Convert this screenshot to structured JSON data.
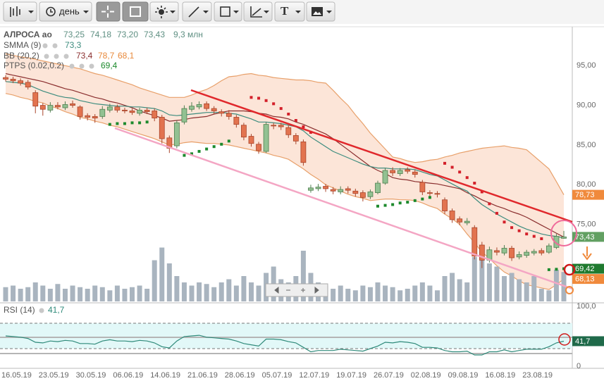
{
  "toolbar": {
    "period": "день",
    "text_tool": "T"
  },
  "chart_data": [
    {
      "type": "candlestick",
      "title": "АЛРОСА ао",
      "header_values": [
        "73,25",
        "74,18",
        "73,20",
        "73,43",
        "9,3 млн"
      ],
      "categories": [
        "16.05.19",
        null,
        null,
        null,
        null,
        "23.05.19",
        null,
        null,
        null,
        null,
        "30.05.19",
        null,
        null,
        null,
        null,
        "06.06.19",
        null,
        null,
        null,
        null,
        "14.06.19",
        null,
        null,
        null,
        null,
        "21.06.19",
        null,
        null,
        null,
        null,
        "28.06.19",
        null,
        null,
        null,
        null,
        "05.07.19",
        null,
        null,
        null,
        null,
        "12.07.19",
        null,
        null,
        null,
        null,
        "19.07.19",
        null,
        null,
        null,
        null,
        "26.07.19",
        null,
        null,
        null,
        null,
        "02.08.19",
        null,
        null,
        null,
        null,
        "09.08.19",
        null,
        null,
        null,
        null,
        "16.08.19",
        null,
        null,
        null,
        null,
        "23.08.19",
        null,
        null,
        null,
        null,
        null
      ],
      "open": [
        93.5,
        93.3,
        93.1,
        92.9,
        91.6,
        90.0,
        89.4,
        90.0,
        89.7,
        90.2,
        89.8,
        88.7,
        88.6,
        88.6,
        89.4,
        89.8,
        89.4,
        89.3,
        89.0,
        89.4,
        89.3,
        88.5,
        85.9,
        84.9,
        87.9,
        89.5,
        89.8,
        90.2,
        89.6,
        89.2,
        89.0,
        88.5,
        87.5,
        86.1,
        85.1,
        84.2,
        87.5,
        87.5,
        87.2,
        86.2,
        85.4,
        79.3,
        79.5,
        79.8,
        79.4,
        79.1,
        79.5,
        79.2,
        79.0,
        78.5,
        79.0,
        80.2,
        81.8,
        81.4,
        81.9,
        81.6,
        80.3,
        79.0,
        78.9,
        78.1,
        76.7,
        75.7,
        75.2,
        74.6,
        72.4,
        70.5,
        71.7,
        71.4,
        72.0,
        70.9,
        71.1,
        71.4,
        71.7,
        71.5,
        72.1,
        73.25
      ],
      "high": [
        93.8,
        93.6,
        93.4,
        93.2,
        91.9,
        90.3,
        90.4,
        90.4,
        90.5,
        90.6,
        90.0,
        89.0,
        88.9,
        89.9,
        90.2,
        90.1,
        89.7,
        89.6,
        89.7,
        89.7,
        89.6,
        88.8,
        86.2,
        88.1,
        90.0,
        90.4,
        90.5,
        90.5,
        89.9,
        89.5,
        89.4,
        88.8,
        87.8,
        86.4,
        85.4,
        87.9,
        87.8,
        87.8,
        87.5,
        86.5,
        85.7,
        80.0,
        80.1,
        80.1,
        79.7,
        79.8,
        79.8,
        79.5,
        79.3,
        79.4,
        80.5,
        82.1,
        82.2,
        82.1,
        82.2,
        81.9,
        80.6,
        79.3,
        79.2,
        78.4,
        77.0,
        76.0,
        75.8,
        74.9,
        72.8,
        72.2,
        72.1,
        72.4,
        72.3,
        71.6,
        71.8,
        71.9,
        72.0,
        72.6,
        73.8,
        74.18
      ],
      "low": [
        93.0,
        92.8,
        92.5,
        92.0,
        89.0,
        88.7,
        89.1,
        89.5,
        89.4,
        89.7,
        88.2,
        88.1,
        87.8,
        88.3,
        89.1,
        89.1,
        89.0,
        88.8,
        88.7,
        88.9,
        88.0,
        85.2,
        84.0,
        84.6,
        87.6,
        89.2,
        89.5,
        89.3,
        88.9,
        88.6,
        88.2,
        87.2,
        85.6,
        84.8,
        83.9,
        84.0,
        87.0,
        86.9,
        85.9,
        85.1,
        82.4,
        79.0,
        79.2,
        79.1,
        78.8,
        78.8,
        78.9,
        78.5,
        77.9,
        78.2,
        78.8,
        80.0,
        81.1,
        81.1,
        81.4,
        80.9,
        78.7,
        78.5,
        78.4,
        76.3,
        75.2,
        74.9,
        74.9,
        70.6,
        69.5,
        70.2,
        71.1,
        71.1,
        70.4,
        70.6,
        70.8,
        71.1,
        71.1,
        71.3,
        71.9,
        73.2
      ],
      "close": [
        93.3,
        93.1,
        92.8,
        92.3,
        89.9,
        89.5,
        90.0,
        89.8,
        90.1,
        90.0,
        88.6,
        88.5,
        88.4,
        89.5,
        89.8,
        89.4,
        89.3,
        89.1,
        89.4,
        89.2,
        88.4,
        85.8,
        84.6,
        87.8,
        89.6,
        89.9,
        90.1,
        89.6,
        89.3,
        89.0,
        88.6,
        87.6,
        86.0,
        85.2,
        84.3,
        87.6,
        87.4,
        87.3,
        86.3,
        85.5,
        82.8,
        79.6,
        79.7,
        79.5,
        79.2,
        79.4,
        79.3,
        78.9,
        78.4,
        79.1,
        80.2,
        81.8,
        81.5,
        81.8,
        81.7,
        81.3,
        79.1,
        78.9,
        78.8,
        76.7,
        75.6,
        75.3,
        75.4,
        71.0,
        70.5,
        71.8,
        71.5,
        72.0,
        70.8,
        71.2,
        71.5,
        71.6,
        71.4,
        72.3,
        73.5,
        73.43
      ],
      "last_label": "73,43",
      "last_color": "#62a062",
      "up_color": "#92c192",
      "up_border": "#4f7f4f",
      "down_color": "#e2734f",
      "down_border": "#a9452b",
      "ylim": [
        65.3,
        99.9
      ],
      "yticks": [
        {
          "value": 95,
          "label": "95,00"
        },
        {
          "value": 90,
          "label": "90,00"
        },
        {
          "value": 85,
          "label": "85,00"
        },
        {
          "value": 80,
          "label": "80,00"
        },
        {
          "value": 75,
          "label": "75,00"
        }
      ],
      "grid": true,
      "smma": {
        "name": "SMMA (9)",
        "color": "#3c8c7e",
        "legend_value": "73,3",
        "values": [
          93.0,
          92.9,
          92.8,
          92.6,
          92.2,
          91.8,
          91.5,
          91.2,
          91.0,
          90.9,
          90.6,
          90.4,
          90.2,
          90.1,
          90.0,
          89.9,
          89.9,
          89.8,
          89.8,
          89.7,
          89.6,
          89.3,
          88.8,
          88.7,
          88.8,
          88.9,
          89.0,
          89.1,
          89.1,
          89.1,
          89.0,
          88.9,
          88.6,
          88.3,
          87.9,
          87.9,
          87.8,
          87.7,
          87.5,
          87.3,
          86.8,
          86.0,
          85.4,
          84.8,
          84.2,
          83.8,
          83.4,
          83.0,
          82.6,
          82.3,
          82.1,
          82.1,
          82.0,
          82.0,
          82.0,
          81.9,
          81.6,
          81.3,
          81.1,
          80.6,
          80.1,
          79.6,
          79.2,
          78.3,
          77.5,
          76.9,
          76.3,
          75.8,
          75.3,
          74.8,
          74.4,
          74.1,
          73.8,
          73.6,
          73.5,
          73.3
        ]
      },
      "bb": {
        "name": "BB (20,2)",
        "color": "#e8a06a",
        "fill": "#fce5d8",
        "middle_color": "#8a2e2e",
        "legend_values": {
          "middle": "73,4",
          "upper": "78,7",
          "lower": "68,1"
        },
        "last_labels": {
          "upper": "78,73",
          "lower": "68,13"
        },
        "label_color": "#f08a3c",
        "upper": [
          96.5,
          96.3,
          96.1,
          96.0,
          95.8,
          95.6,
          95.4,
          95.2,
          95.0,
          94.8,
          94.6,
          94.3,
          94.0,
          93.8,
          93.5,
          93.2,
          92.9,
          92.6,
          92.2,
          91.9,
          91.6,
          91.3,
          91.0,
          91.0,
          91.0,
          91.3,
          91.7,
          92.0,
          92.5,
          93.1,
          93.6,
          93.7,
          93.9,
          94.0,
          93.8,
          93.7,
          93.5,
          93.4,
          93.3,
          93.2,
          93.2,
          93.1,
          92.9,
          92.8,
          91.9,
          90.9,
          90.0,
          88.8,
          87.7,
          86.5,
          85.5,
          84.5,
          83.5,
          83.3,
          83.0,
          82.8,
          82.9,
          83.1,
          83.2,
          83.5,
          83.7,
          84.0,
          84.2,
          84.4,
          84.6,
          84.7,
          84.8,
          84.9,
          84.7,
          84.6,
          84.4,
          83.6,
          82.8,
          82.0,
          80.4,
          78.73
        ],
        "middle": [
          94.0,
          93.8,
          93.6,
          93.4,
          93.2,
          93.0,
          92.7,
          92.4,
          92.1,
          91.9,
          91.6,
          91.3,
          91.0,
          90.8,
          90.5,
          90.3,
          90.0,
          89.7,
          89.3,
          89.0,
          88.7,
          88.4,
          88.0,
          88.1,
          88.2,
          88.4,
          88.5,
          88.6,
          88.9,
          89.1,
          89.3,
          89.3,
          89.3,
          89.2,
          89.0,
          88.9,
          88.6,
          88.5,
          88.3,
          87.9,
          87.6,
          87.2,
          86.8,
          86.4,
          85.8,
          85.1,
          84.4,
          83.7,
          83.0,
          82.3,
          81.8,
          81.4,
          80.9,
          80.7,
          80.6,
          80.4,
          80.3,
          80.2,
          80.1,
          79.9,
          79.7,
          79.5,
          79.0,
          78.6,
          78.1,
          77.7,
          77.3,
          77.0,
          76.6,
          76.3,
          75.9,
          75.4,
          74.9,
          74.4,
          73.9,
          73.4
        ],
        "lower": [
          91.5,
          91.3,
          91.0,
          90.8,
          90.5,
          90.3,
          89.9,
          89.6,
          89.2,
          88.9,
          88.5,
          88.3,
          88.0,
          87.8,
          87.5,
          87.3,
          87.0,
          86.7,
          86.4,
          86.1,
          85.8,
          85.4,
          85.0,
          85.1,
          85.3,
          85.4,
          85.3,
          85.2,
          85.2,
          85.1,
          85.0,
          84.8,
          84.6,
          84.4,
          84.2,
          84.0,
          83.7,
          83.5,
          83.2,
          82.6,
          82.0,
          81.3,
          80.7,
          80.0,
          79.6,
          79.2,
          78.8,
          78.5,
          78.3,
          78.0,
          78.1,
          78.2,
          78.2,
          78.1,
          78.1,
          78.0,
          77.7,
          77.3,
          77.0,
          76.3,
          75.7,
          75.0,
          73.8,
          72.7,
          71.5,
          70.7,
          69.8,
          69.0,
          68.5,
          67.9,
          67.4,
          67.2,
          67.0,
          66.8,
          67.4,
          68.13
        ]
      },
      "ptps": {
        "name": "PTPS (0.02,0.2)",
        "legend_value": "69,4",
        "last_label": "69,42",
        "label_color": "#1f7a2f",
        "above_color": "#d3202a",
        "below_color": "#1d8a2d",
        "values": [
          null,
          null,
          null,
          null,
          null,
          null,
          null,
          null,
          null,
          null,
          null,
          null,
          null,
          null,
          87.6,
          87.7,
          87.7,
          87.8,
          87.8,
          87.9,
          null,
          null,
          null,
          null,
          83.7,
          83.9,
          84.2,
          84.5,
          84.8,
          85.1,
          85.5,
          null,
          null,
          91.0,
          90.9,
          90.6,
          90.2,
          89.6,
          88.9,
          88.1,
          87.3,
          86.6,
          null,
          null,
          null,
          null,
          null,
          null,
          null,
          null,
          77.3,
          77.4,
          77.5,
          77.7,
          77.8,
          78.0,
          78.2,
          78.4,
          null,
          82.7,
          82.2,
          81.6,
          80.9,
          80.2,
          79.1,
          77.6,
          76.4,
          75.3,
          74.6,
          74.2,
          73.8,
          73.5,
          73.2,
          69.3,
          69.35,
          69.42
        ]
      },
      "volume": {
        "color": "#a9b4bf",
        "values": [
          4.5,
          5,
          4,
          4.5,
          6,
          5,
          4,
          5.5,
          4,
          5,
          4.5,
          4,
          5,
          4.5,
          3.5,
          5,
          4,
          4.5,
          5,
          4,
          13,
          17,
          12,
          8,
          6,
          5,
          6,
          5.5,
          4.5,
          6,
          7,
          5,
          8,
          6,
          5,
          9,
          11,
          7,
          6,
          8,
          16,
          9,
          6,
          5,
          4,
          5,
          4,
          3.5,
          5,
          4.5,
          6,
          5,
          4.5,
          3.5,
          4,
          5,
          6,
          5,
          3.5,
          8,
          9,
          7,
          6,
          14,
          15,
          12,
          11,
          8,
          9,
          7,
          6,
          8,
          4,
          3.5,
          10,
          9.3
        ]
      }
    },
    {
      "type": "line",
      "title": "RSI (14)",
      "color": "#2f8a7a",
      "legend_value": "41,7",
      "last_label": "41,7",
      "label_color": "#1f6a4a",
      "band_color": "#e2f8f8",
      "values": [
        50,
        49,
        48,
        46,
        40,
        39,
        42,
        41,
        43,
        42,
        38,
        38,
        37,
        42,
        44,
        42,
        42,
        41,
        43,
        42,
        39,
        33,
        31,
        42,
        49,
        50,
        51,
        48,
        47,
        46,
        45,
        42,
        38,
        36,
        34,
        45,
        45,
        44,
        41,
        39,
        32,
        25,
        27,
        27,
        27,
        29,
        28,
        27,
        26,
        30,
        34,
        40,
        39,
        41,
        40,
        38,
        32,
        32,
        31,
        27,
        25,
        25,
        26,
        20,
        20,
        25,
        25,
        28,
        25,
        27,
        29,
        29,
        29,
        33,
        39,
        41.7
      ],
      "ylim": [
        0,
        100
      ],
      "yticks": [
        {
          "value": 100,
          "label": "100,0"
        },
        0
      ],
      "levels": [
        70,
        30
      ]
    }
  ]
}
